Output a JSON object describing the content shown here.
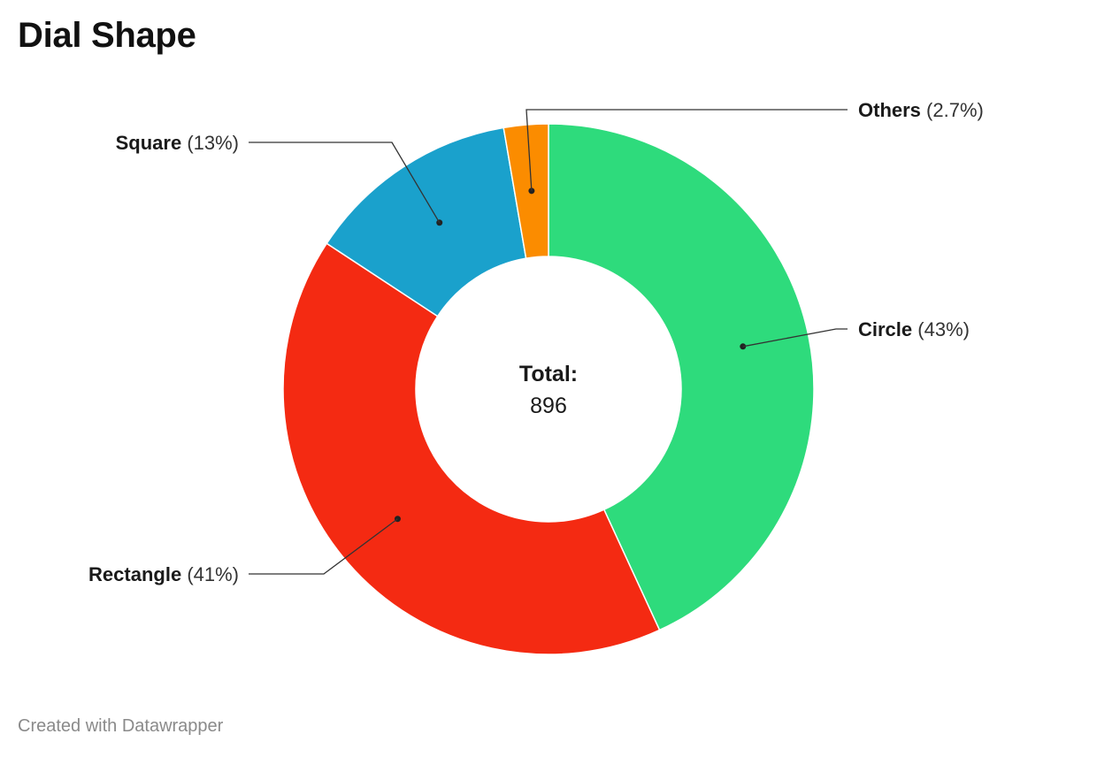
{
  "chart_data": {
    "type": "pie",
    "title": "Dial Shape",
    "center_label": {
      "heading": "Total:",
      "value": "896"
    },
    "slices": [
      {
        "label": "Circle",
        "percent_label": "(43%)",
        "value": 43,
        "color": "#2edb7c"
      },
      {
        "label": "Rectangle",
        "percent_label": "(41%)",
        "value": 41,
        "color": "#f42a12"
      },
      {
        "label": "Square",
        "percent_label": "(13%)",
        "value": 13,
        "color": "#1aa1cc"
      },
      {
        "label": "Others",
        "percent_label": "(2.7%)",
        "value": 2.7,
        "color": "#fb8c00"
      }
    ]
  },
  "footer": {
    "credit": "Created with Datawrapper"
  }
}
